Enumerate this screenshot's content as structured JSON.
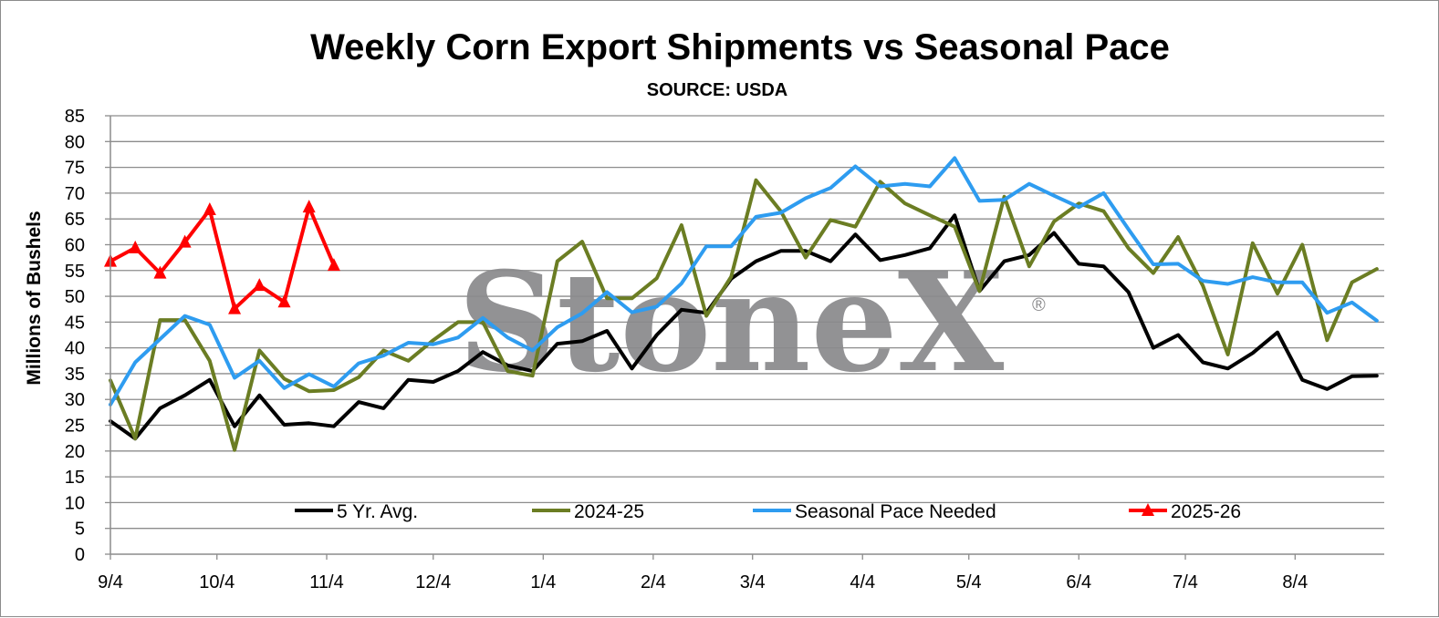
{
  "chart_data": {
    "type": "line",
    "title": "Weekly Corn Export Shipments vs Seasonal Pace",
    "subtitle": "SOURCE: USDA",
    "ylabel": "Millions of Bushels",
    "xlabel": "",
    "ylim": [
      0,
      85
    ],
    "yticks": [
      0,
      5,
      10,
      15,
      20,
      25,
      30,
      35,
      40,
      45,
      50,
      55,
      60,
      65,
      70,
      75,
      80,
      85
    ],
    "xtick_labels": [
      {
        "label": "9/4",
        "week": 0
      },
      {
        "label": "10/4",
        "week": 4.29
      },
      {
        "label": "11/4",
        "week": 8.71
      },
      {
        "label": "12/4",
        "week": 13.0
      },
      {
        "label": "1/4",
        "week": 17.43
      },
      {
        "label": "2/4",
        "week": 21.86
      },
      {
        "label": "3/4",
        "week": 25.86
      },
      {
        "label": "4/4",
        "week": 30.29
      },
      {
        "label": "5/4",
        "week": 34.57
      },
      {
        "label": "6/4",
        "week": 39.0
      },
      {
        "label": "7/4",
        "week": 43.29
      },
      {
        "label": "8/4",
        "week": 47.71
      }
    ],
    "x_max_week": 51.3,
    "grid": true,
    "legend_position": "bottom-inside",
    "watermark": "StoneX",
    "watermark_mark": "®",
    "series": [
      {
        "name": "5 Yr. Avg.",
        "color": "#000000",
        "marker": "none",
        "values": [
          25.8,
          22.4,
          28.3,
          30.8,
          33.8,
          24.8,
          30.8,
          25.1,
          25.4,
          24.8,
          29.5,
          28.3,
          33.8,
          33.4,
          35.5,
          39.2,
          36.6,
          35.5,
          40.8,
          41.3,
          43.3,
          36.0,
          42.5,
          47.4,
          46.8,
          53.4,
          56.8,
          58.8,
          58.8,
          56.8,
          62.0,
          57.0,
          58.0,
          59.3,
          65.7,
          51.0,
          56.8,
          58.0,
          62.3,
          56.3,
          55.8,
          50.8,
          40.0,
          42.5,
          37.2,
          36.0,
          39.0,
          43.0,
          33.8,
          32.0,
          34.5,
          34.6
        ]
      },
      {
        "name": "2024-25",
        "color": "#6b7d23",
        "marker": "none",
        "values": [
          33.7,
          22.4,
          45.4,
          45.4,
          37.5,
          20.2,
          39.5,
          34.0,
          31.6,
          31.8,
          34.3,
          39.5,
          37.5,
          41.5,
          45.0,
          45.0,
          35.5,
          34.6,
          56.8,
          60.6,
          49.6,
          49.6,
          53.5,
          63.8,
          46.2,
          53.8,
          72.5,
          66.5,
          57.5,
          64.8,
          63.5,
          72.2,
          68.0,
          65.7,
          63.5,
          51.0,
          69.3,
          55.8,
          64.5,
          68.0,
          66.5,
          59.3,
          54.5,
          61.5,
          52.0,
          38.7,
          60.3,
          50.5,
          60.0,
          41.5,
          52.7,
          55.3
        ]
      },
      {
        "name": "Seasonal Pace Needed",
        "color": "#2e9cf0",
        "marker": "none",
        "values": [
          29.0,
          37.2,
          41.7,
          46.2,
          44.5,
          34.2,
          37.5,
          32.2,
          34.9,
          32.5,
          37.0,
          38.5,
          41.0,
          40.7,
          42.0,
          45.8,
          42.0,
          39.5,
          44.0,
          46.7,
          50.8,
          46.9,
          48.0,
          52.5,
          59.7,
          59.7,
          65.4,
          66.2,
          69.0,
          71.0,
          75.2,
          71.3,
          71.8,
          71.3,
          76.8,
          68.5,
          68.7,
          71.8,
          69.5,
          67.3,
          70.0,
          63.0,
          56.2,
          56.3,
          53.0,
          52.4,
          53.7,
          52.7,
          52.7,
          46.8,
          48.8,
          45.3
        ]
      },
      {
        "name": "2025-26",
        "color": "#ff0000",
        "marker": "triangle",
        "values": [
          56.8,
          59.4,
          54.5,
          60.5,
          66.8,
          47.6,
          52.1,
          48.9,
          67.3,
          56.0
        ]
      }
    ]
  }
}
